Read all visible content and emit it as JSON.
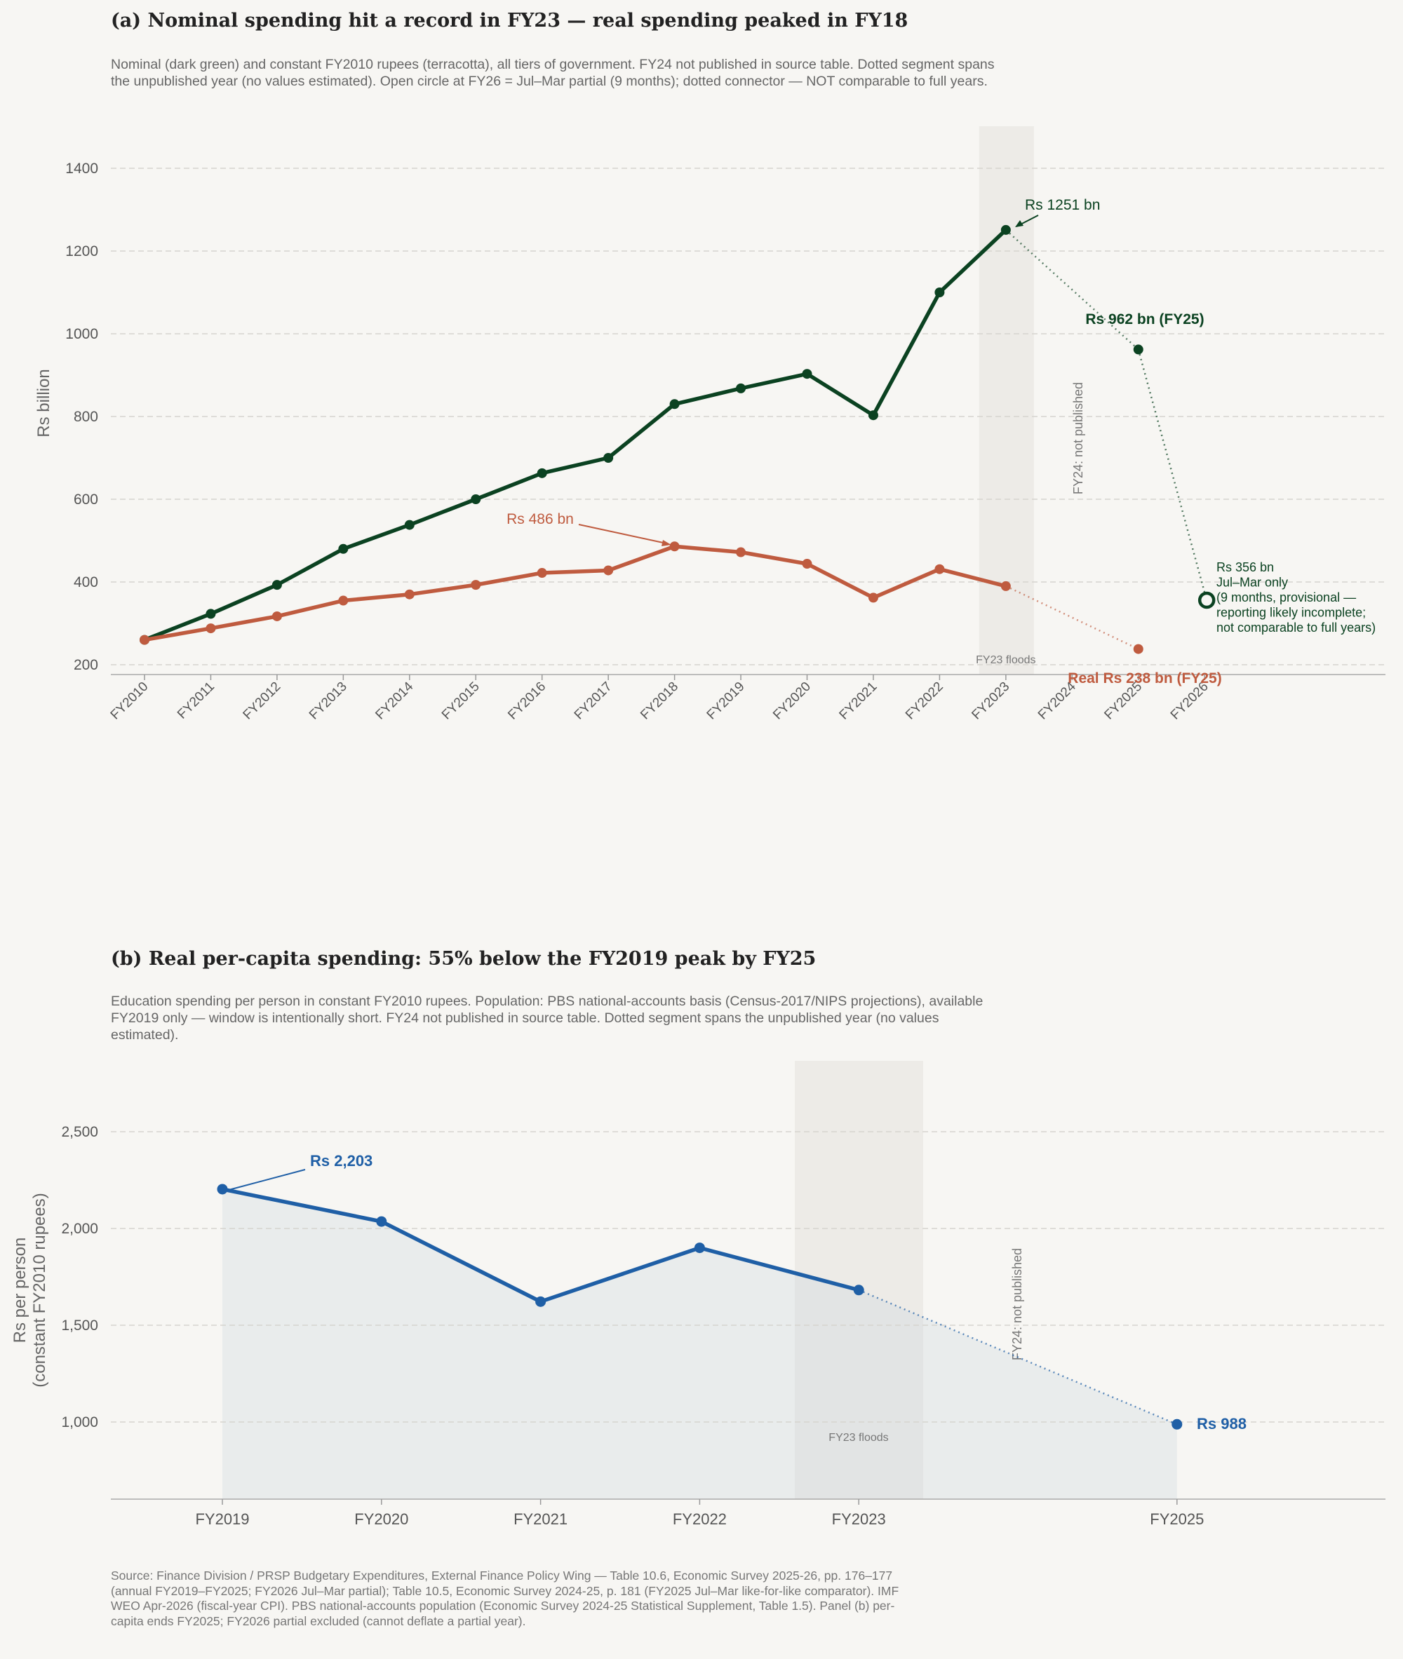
{
  "panel_a": {
    "title": "(a)  Nominal spending hit a record in FY23 — real spending peaked in FY18",
    "subtitle": "Nominal (dark green) and constant FY2010 rupees (terracotta), all tiers of government. FY24 not published in source table. Dotted segment spans the unpublished year (no values estimated). Open circle at FY26 = Jul–Mar partial (9 months); dotted connector — NOT comparable to full years.",
    "annotations": {
      "nominal_peak": "Rs 1251 bn",
      "nominal_fy25": "Rs 962 bn (FY25)",
      "real_peak": "Rs 486 bn",
      "real_fy25": "Real Rs 238 bn (FY25)",
      "partial_lines": [
        "Rs 356 bn",
        "Jul–Mar only",
        "(9 months, provisional —",
        "reporting likely incomplete;",
        "not comparable to full years)"
      ],
      "unpublished": "FY24: not published",
      "floods": "FY23 floods"
    }
  },
  "panel_b": {
    "title": "(b)  Real per-capita spending: 55% below the FY2019 peak by FY25",
    "subtitle": "Education spending per person in constant FY2010 rupees. Population: PBS national-accounts basis (Census-2017/NIPS projections), available FY2019 only — window is intentionally short. FY24 not published in source table. Dotted segment spans the unpublished year (no values estimated).",
    "annotations": {
      "peak": "Rs 2,203",
      "fy25": "Rs 988",
      "unpublished": "FY24: not published",
      "floods": "FY23 floods"
    }
  },
  "footer": "Source: Finance Division / PRSP Budgetary Expenditures, External Finance Policy Wing — Table 10.6, Economic Survey 2025-26, pp. 176–177 (annual FY2019–FY2025; FY2026 Jul–Mar partial); Table 10.5, Economic Survey 2024-25, p. 181 (FY2025 Jul–Mar like-for-like comparator). IMF WEO Apr-2026 (fiscal-year CPI). PBS national-accounts population (Economic Survey 2024-25 Statistical Supplement, Table 1.5). Panel (b) per-capita ends FY2025; FY2026 partial excluded (cannot deflate a partial year).",
  "colors": {
    "nominal": "#0b4221",
    "real": "#bf5b3f",
    "percapita": "#1f5fa6",
    "grid": "#d6d4cf",
    "shade": "#ebe9e4"
  },
  "chart_data": [
    {
      "type": "line",
      "ylabel": "Rs billion",
      "categories": [
        "FY2010",
        "FY2011",
        "FY2012",
        "FY2013",
        "FY2014",
        "FY2015",
        "FY2016",
        "FY2017",
        "FY2018",
        "FY2019",
        "FY2020",
        "FY2021",
        "FY2022",
        "FY2023",
        "FY2024",
        "FY2025",
        "FY2026"
      ],
      "yticks": [
        200,
        400,
        600,
        800,
        1000,
        1200,
        1400
      ],
      "ylim": [
        170,
        1500
      ],
      "grid": true,
      "series": [
        {
          "key": "nominal",
          "values": [
            260,
            323,
            393,
            480,
            538,
            600,
            663,
            700,
            830,
            868,
            903,
            803,
            1100,
            1251,
            null,
            962,
            null
          ]
        },
        {
          "key": "real",
          "values": [
            260,
            288,
            317,
            355,
            370,
            393,
            422,
            428,
            486,
            472,
            444,
            362,
            431,
            390,
            null,
            238,
            null
          ]
        }
      ],
      "partial": {
        "category": "FY2026",
        "value": 356
      },
      "shaded_regions": [
        {
          "category": "FY2023",
          "label": "FY23 floods"
        }
      ]
    },
    {
      "type": "area",
      "ylabel": "Rs per person\n(constant FY2010 rupees)",
      "categories": [
        "FY2019",
        "FY2020",
        "FY2021",
        "FY2022",
        "FY2023",
        "FY2025"
      ],
      "x_positions": [
        2019,
        2020,
        2021,
        2022,
        2023,
        2025
      ],
      "xlim": [
        2018.3,
        2026.3
      ],
      "yticks": [
        1000,
        1500,
        2000,
        2500
      ],
      "ytick_labels": [
        "1,000",
        "1,500",
        "2,000",
        "2,500"
      ],
      "ylim": [
        600,
        2870
      ],
      "grid": true,
      "series": [
        {
          "key": "percapita",
          "values": [
            2203,
            2036,
            1622,
            1900,
            1682,
            988
          ]
        }
      ],
      "shaded_regions": [
        {
          "category": "FY2023",
          "label": "FY23 floods"
        }
      ]
    }
  ]
}
